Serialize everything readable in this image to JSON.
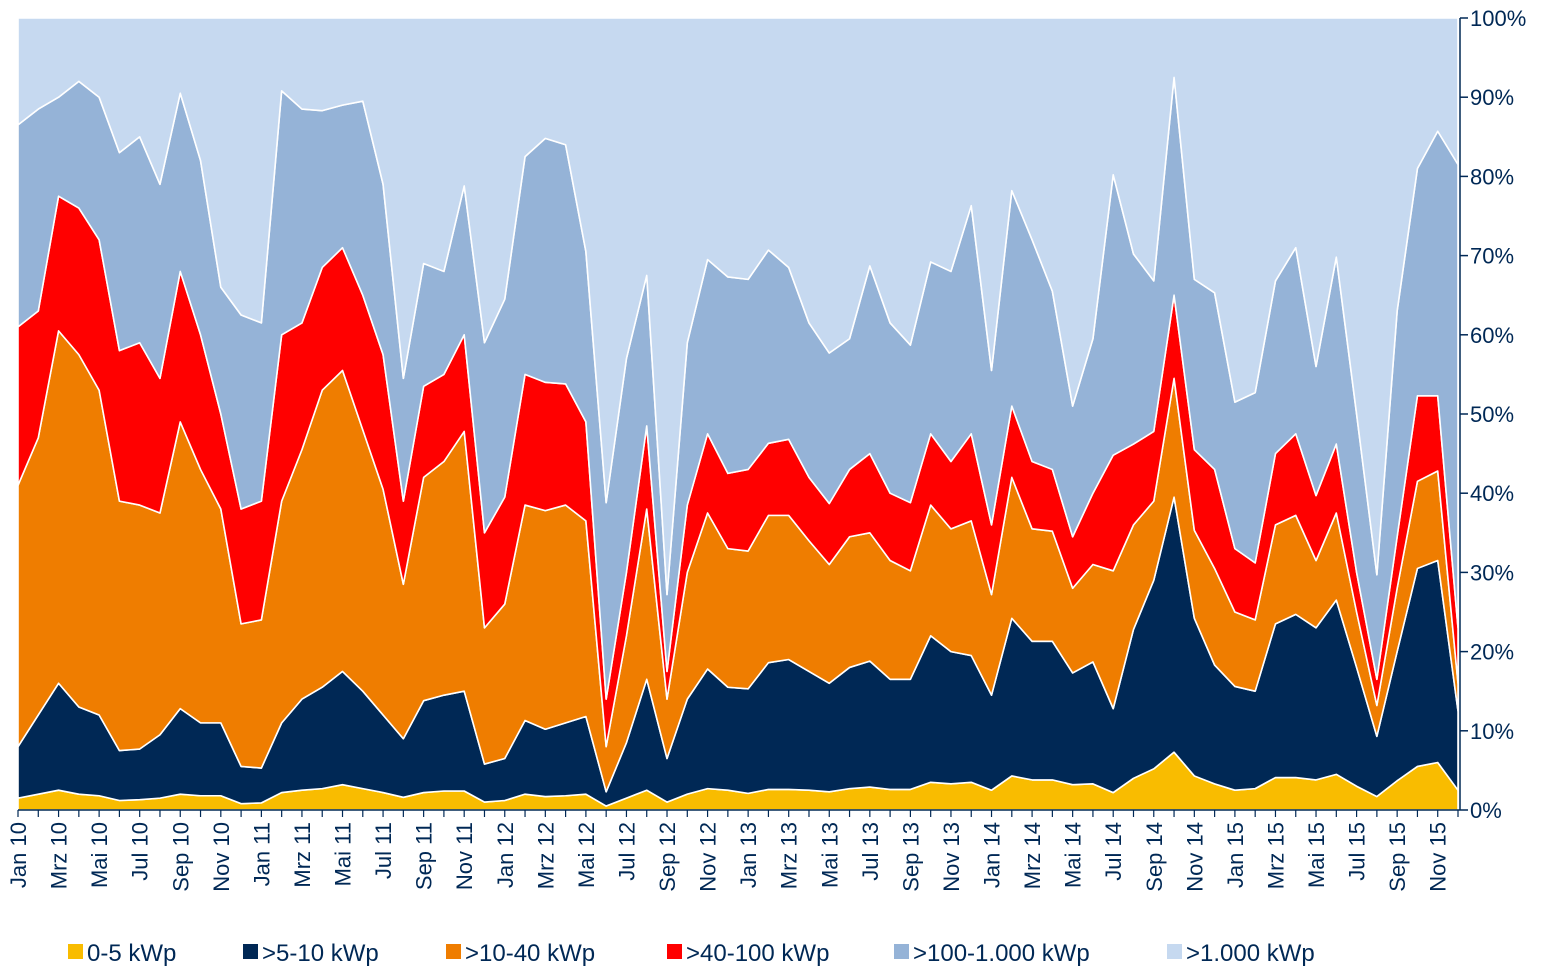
{
  "chart_data": {
    "type": "stacked_area",
    "categories": [
      "Jan 10",
      null,
      "Mrz 10",
      null,
      "Mai 10",
      null,
      "Jul 10",
      null,
      "Sep 10",
      null,
      "Nov 10",
      null,
      "Jan 11",
      null,
      "Mrz 11",
      null,
      "Mai 11",
      null,
      "Jul 11",
      null,
      "Sep 11",
      null,
      "Nov 11",
      null,
      "Jan 12",
      null,
      "Mrz 12",
      null,
      "Mai 12",
      null,
      "Jul 12",
      null,
      "Sep 12",
      null,
      "Nov 12",
      null,
      "Jan 13",
      null,
      "Mrz 13",
      null,
      "Mai 13",
      null,
      "Jul 13",
      null,
      "Sep 13",
      null,
      "Nov 13",
      null,
      "Jan 14",
      null,
      "Mrz 14",
      null,
      "Mai 14",
      null,
      "Jul 14",
      null,
      "Sep 14",
      null,
      "Nov 14",
      null,
      "Jan 15",
      null,
      "Mrz 15",
      null,
      "Mai 15",
      null,
      "Jul 15",
      null,
      "Sep 15",
      null,
      "Nov 15",
      null
    ],
    "series": [
      {
        "name": "0-5 kWp",
        "color": "#f9bc00",
        "values": [
          1.5,
          2,
          2.5,
          2,
          1.8,
          1.2,
          1.3,
          1.5,
          2,
          1.8,
          1.8,
          0.8,
          0.9,
          2.2,
          2.5,
          2.7,
          3.2,
          2.7,
          2.2,
          1.6,
          2.2,
          2.4,
          2.4,
          1,
          1.2,
          2,
          1.7,
          1.8,
          2,
          0.5,
          1.5,
          2.5,
          1,
          2,
          2.7,
          2.5,
          2.1,
          2.6,
          2.6,
          2.5,
          2.3,
          2.7,
          2.9,
          2.6,
          2.6,
          3.5,
          3.3,
          3.5,
          2.5,
          4.3,
          3.8,
          3.8,
          3.2,
          3.3,
          2.2,
          4,
          5.2,
          7.3,
          4.3,
          3.3,
          2.5,
          2.7,
          4.1,
          4.1,
          3.8,
          4.5,
          3,
          1.7,
          3.7,
          5.5,
          6,
          2.5
        ]
      },
      {
        "name": ">5-10 kWp",
        "color": "#002855",
        "values": [
          6.5,
          10,
          13.5,
          11,
          10.2,
          6.3,
          6.4,
          8,
          10.8,
          9.2,
          9.2,
          4.7,
          4.4,
          8.8,
          11.5,
          12.8,
          14.3,
          12.3,
          9.8,
          7.4,
          11.6,
          12.1,
          12.6,
          4.8,
          5.3,
          9.3,
          8.5,
          9.2,
          9.8,
          1.8,
          7,
          14,
          5.5,
          12,
          15.1,
          13,
          13.2,
          16,
          16.4,
          15,
          13.7,
          15.3,
          15.9,
          13.9,
          13.9,
          18.5,
          16.7,
          16,
          12,
          19.9,
          17.5,
          17.5,
          14.1,
          15.4,
          10.6,
          18.8,
          23.8,
          32.2,
          19.9,
          15,
          13.1,
          12.3,
          19.4,
          20.6,
          19.2,
          22,
          15,
          7.6,
          16.3,
          25,
          25.5,
          10
        ]
      },
      {
        "name": ">10-40 kWp",
        "color": "#ef7d00",
        "values": [
          33,
          35,
          44.5,
          44.5,
          41,
          31.5,
          30.8,
          28,
          36.2,
          32,
          27,
          18,
          18.7,
          28,
          31.5,
          37.5,
          38,
          33,
          28.5,
          19.5,
          28.2,
          29.5,
          32.8,
          17.2,
          19.5,
          27.2,
          27.6,
          27.5,
          24.7,
          5.7,
          13.5,
          21.5,
          7.5,
          16,
          19.7,
          17.5,
          17.4,
          18.6,
          18.2,
          16.5,
          15,
          16.5,
          16.2,
          15,
          13.7,
          16.5,
          15.5,
          17,
          12.7,
          17.8,
          14.2,
          13.9,
          10.7,
          12.3,
          17.4,
          13.2,
          10,
          15,
          11.1,
          12.2,
          9.4,
          9,
          12.5,
          12.5,
          8.5,
          11,
          7,
          3.9,
          8,
          11,
          11.3,
          3.5
        ]
      },
      {
        "name": ">40-100 kWp",
        "color": "#ff0000",
        "values": [
          20,
          16,
          17,
          18.5,
          19,
          19,
          20.5,
          17,
          19,
          17,
          12,
          14.5,
          15,
          21,
          16,
          15.5,
          15.5,
          17,
          17,
          10.5,
          11.5,
          11,
          12.2,
          12,
          13.5,
          16.5,
          16.2,
          15.3,
          12.5,
          6,
          8,
          10.5,
          3.5,
          8.5,
          10,
          9.5,
          10.3,
          9.1,
          9.6,
          8,
          7.7,
          8.5,
          10,
          8.5,
          8.6,
          9,
          8.5,
          11,
          8.8,
          9,
          8.5,
          7.8,
          6.5,
          9,
          14.6,
          10.2,
          8.8,
          10.5,
          10.2,
          12.5,
          8,
          7.2,
          9,
          10.3,
          8.2,
          8.7,
          5,
          3.3,
          6.5,
          10.8,
          9.5,
          7
        ]
      },
      {
        "name": ">100-1.000 kWp",
        "color": "#95b3d7",
        "values": [
          25.5,
          25.5,
          12.5,
          16,
          18,
          25,
          26,
          24.5,
          22.5,
          22,
          16,
          24.5,
          22.5,
          30.8,
          27,
          19.8,
          18,
          24.5,
          21.5,
          15.5,
          15.5,
          13,
          18.8,
          24,
          25,
          27.5,
          30.8,
          30.2,
          21.5,
          24.8,
          27,
          19,
          9.7,
          20.5,
          22,
          24.8,
          24,
          24.4,
          21.7,
          19.5,
          19,
          16.5,
          23.7,
          21.5,
          19.9,
          21.7,
          24,
          28.8,
          19.5,
          27.2,
          28,
          22.5,
          16.5,
          19.5,
          35.4,
          24,
          19,
          27.5,
          21.5,
          22.3,
          18.5,
          21.5,
          21.8,
          23.5,
          16.3,
          23.6,
          20,
          13.2,
          28.5,
          28.7,
          33.4,
          58.5
        ]
      },
      {
        "name": ">1.000 kWp",
        "color": "#c6d9f0",
        "values": [
          13.5,
          11.5,
          10,
          8,
          10,
          17,
          15,
          21,
          9.5,
          18,
          34,
          37.5,
          38.5,
          9.2,
          11.5,
          11.7,
          11,
          10.5,
          21,
          45.5,
          31,
          32,
          21.2,
          41,
          35.5,
          17.5,
          15.2,
          16,
          29.5,
          61.2,
          43,
          32.5,
          72.8,
          41,
          30.5,
          32.7,
          33,
          29.3,
          31.5,
          38.5,
          42.3,
          40.5,
          31.3,
          38.5,
          41.3,
          30.8,
          32,
          23.7,
          44.5,
          21.8,
          28,
          34.5,
          49,
          40.5,
          19.8,
          29.8,
          33.2,
          7.5,
          33,
          34.7,
          48.5,
          47.3,
          33.2,
          29,
          44,
          30.2,
          50,
          70.3,
          37,
          19,
          14.3,
          18.5
        ]
      }
    ],
    "ylim": [
      0,
      100
    ],
    "yticks": [
      {
        "value": 0,
        "label": "0%"
      },
      {
        "value": 10,
        "label": "10%"
      },
      {
        "value": 20,
        "label": "20%"
      },
      {
        "value": 30,
        "label": "30%"
      },
      {
        "value": 40,
        "label": "40%"
      },
      {
        "value": 50,
        "label": "50%"
      },
      {
        "value": 60,
        "label": "60%"
      },
      {
        "value": 70,
        "label": "70%"
      },
      {
        "value": 80,
        "label": "80%"
      },
      {
        "value": 90,
        "label": "90%"
      },
      {
        "value": 100,
        "label": "100%"
      }
    ],
    "y_axis_side": "right",
    "legend": "bottom"
  }
}
